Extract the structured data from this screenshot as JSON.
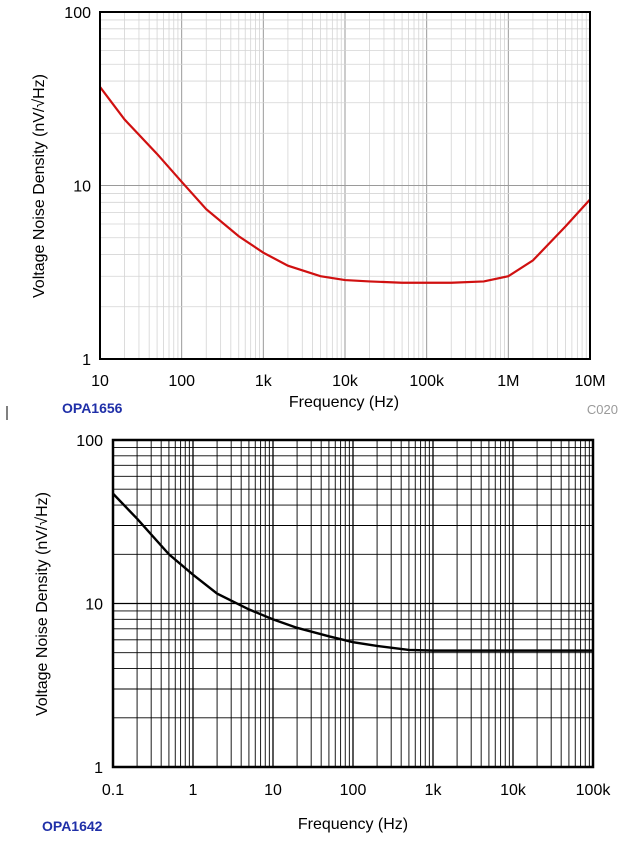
{
  "chart_data": [
    {
      "type": "line",
      "part": "OPA1656",
      "code": "C020",
      "xlabel": "Frequency (Hz)",
      "ylabel": "Voltage Noise Density (nV/√Hz)",
      "xscale": "log",
      "yscale": "log",
      "xlim": [
        10,
        10000000
      ],
      "ylim": [
        1,
        100
      ],
      "grid": true,
      "xticks": [
        "10",
        "100",
        "1k",
        "10k",
        "100k",
        "1M",
        "10M"
      ],
      "yticks": [
        "1",
        "10",
        "100"
      ],
      "line_color": "#d01010",
      "series": [
        {
          "x": [
            10,
            20,
            50,
            100,
            200,
            500,
            1000,
            2000,
            5000,
            10000,
            20000,
            50000,
            100000,
            200000,
            500000,
            1000000,
            2000000,
            5000000,
            10000000
          ],
          "y": [
            37,
            24,
            15.2,
            10.5,
            7.3,
            5.1,
            4.1,
            3.45,
            3.0,
            2.85,
            2.8,
            2.75,
            2.75,
            2.75,
            2.8,
            3.0,
            3.7,
            5.8,
            8.3
          ]
        }
      ]
    },
    {
      "type": "line",
      "part": "OPA1642",
      "xlabel": "Frequency (Hz)",
      "ylabel": "Voltage Noise Density (nV/√Hz)",
      "xscale": "log",
      "yscale": "log",
      "xlim": [
        0.1,
        100000
      ],
      "ylim": [
        1,
        100
      ],
      "grid": true,
      "xticks": [
        "0.1",
        "1",
        "10",
        "100",
        "1k",
        "10k",
        "100k"
      ],
      "yticks": [
        "1",
        "10",
        "100"
      ],
      "line_color": "#000000",
      "series": [
        {
          "x": [
            0.1,
            0.2,
            0.5,
            1,
            2,
            5,
            10,
            20,
            50,
            100,
            200,
            500,
            1000,
            2000,
            5000,
            10000,
            20000,
            50000,
            100000
          ],
          "y": [
            47,
            33,
            20,
            15,
            11.5,
            9.2,
            8.0,
            7.1,
            6.3,
            5.8,
            5.5,
            5.2,
            5.15,
            5.15,
            5.15,
            5.15,
            5.15,
            5.15,
            5.15
          ]
        }
      ]
    }
  ]
}
